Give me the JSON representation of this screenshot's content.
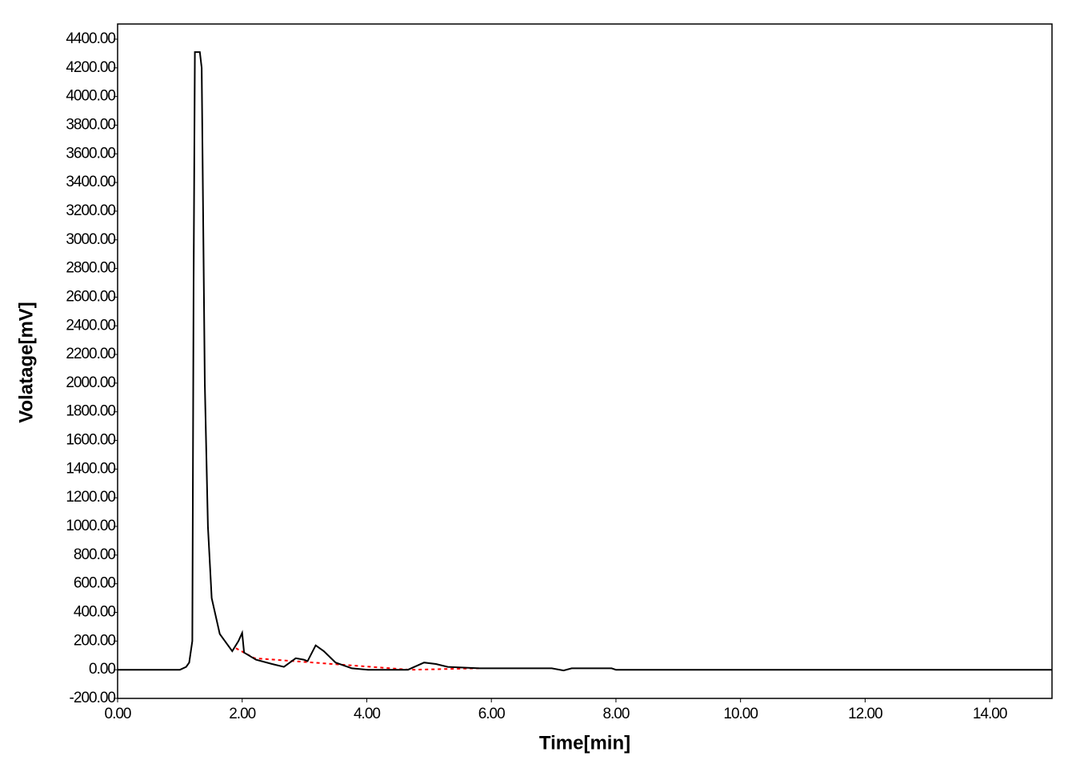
{
  "chart_data": {
    "type": "line",
    "xlabel": "Time[min]",
    "ylabel": "Volatage[mV]",
    "xlim": [
      0,
      15
    ],
    "ylim": [
      -200,
      4506
    ],
    "xticks": [
      {
        "value": 0,
        "label": "0.00"
      },
      {
        "value": 2,
        "label": "2.00"
      },
      {
        "value": 4,
        "label": "4.00"
      },
      {
        "value": 6,
        "label": "6.00"
      },
      {
        "value": 8,
        "label": "8.00"
      },
      {
        "value": 10,
        "label": "10.00"
      },
      {
        "value": 12,
        "label": "12.00"
      },
      {
        "value": 14,
        "label": "14.00"
      }
    ],
    "yticks": [
      {
        "value": -200,
        "label": "-200.00"
      },
      {
        "value": 0,
        "label": "0.00"
      },
      {
        "value": 200,
        "label": "200.00"
      },
      {
        "value": 400,
        "label": "400.00"
      },
      {
        "value": 600,
        "label": "600.00"
      },
      {
        "value": 800,
        "label": "800.00"
      },
      {
        "value": 1000,
        "label": "1000.00"
      },
      {
        "value": 1200,
        "label": "1200.00"
      },
      {
        "value": 1400,
        "label": "1400.00"
      },
      {
        "value": 1600,
        "label": "1600.00"
      },
      {
        "value": 1800,
        "label": "1800.00"
      },
      {
        "value": 2000,
        "label": "2000.00"
      },
      {
        "value": 2200,
        "label": "2200.00"
      },
      {
        "value": 2400,
        "label": "2400.00"
      },
      {
        "value": 2600,
        "label": "2600.00"
      },
      {
        "value": 2800,
        "label": "2800.00"
      },
      {
        "value": 3000,
        "label": "3000.00"
      },
      {
        "value": 3200,
        "label": "3200.00"
      },
      {
        "value": 3400,
        "label": "3400.00"
      },
      {
        "value": 3600,
        "label": "3600.00"
      },
      {
        "value": 3800,
        "label": "3800.00"
      },
      {
        "value": 4000,
        "label": "4000.00"
      },
      {
        "value": 4200,
        "label": "4200.00"
      },
      {
        "value": 4400,
        "label": "4400.00"
      }
    ],
    "series": [
      {
        "color": "#000000",
        "dashed": false,
        "x": [
          0,
          1.0,
          1.1,
          1.15,
          1.2,
          1.22,
          1.24,
          1.32,
          1.35,
          1.4,
          1.45,
          1.51,
          1.64,
          1.84,
          1.94,
          2.0,
          2.03,
          2.22,
          2.48,
          2.67,
          2.86,
          2.99,
          3.05,
          3.18,
          3.31,
          3.5,
          3.76,
          4.02,
          4.66,
          4.92,
          5.11,
          5.3,
          5.81,
          6.97,
          7.16,
          7.29,
          7.93,
          8.0,
          15
        ],
        "values": [
          0,
          0,
          20,
          50,
          200,
          2700,
          4310,
          4310,
          4200,
          2000,
          1000,
          500,
          250,
          130,
          200,
          257,
          120,
          70,
          40,
          20,
          80,
          70,
          60,
          170,
          130,
          50,
          10,
          0,
          0,
          50,
          40,
          20,
          10,
          10,
          -5,
          10,
          10,
          0,
          0
        ]
      },
      {
        "color": "#ff0000",
        "dashed": true,
        "x": [
          1.9,
          2.2,
          4.7,
          5.8
        ],
        "values": [
          150,
          80,
          0,
          10
        ]
      }
    ]
  }
}
